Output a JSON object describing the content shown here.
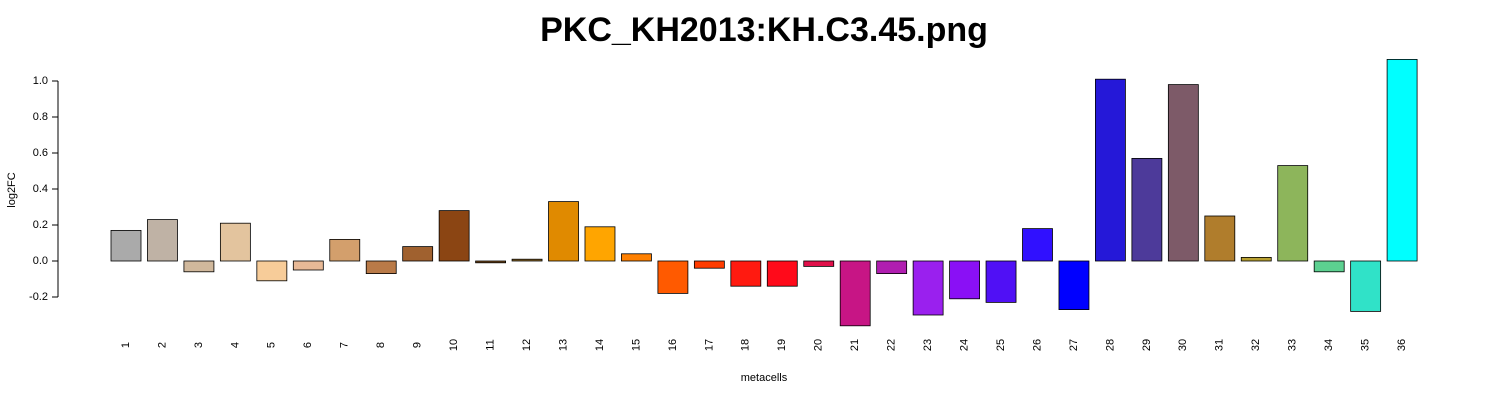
{
  "chart_data": {
    "type": "bar",
    "title": "PKC_KH2013:KH.C3.45.png",
    "x_label": "metacells",
    "y_label": "log2FC",
    "categories": [
      "1",
      "2",
      "3",
      "4",
      "5",
      "6",
      "7",
      "8",
      "9",
      "10",
      "11",
      "12",
      "13",
      "14",
      "15",
      "16",
      "17",
      "18",
      "19",
      "20",
      "21",
      "22",
      "23",
      "24",
      "25",
      "26",
      "27",
      "28",
      "29",
      "30",
      "31",
      "32",
      "33",
      "34",
      "35",
      "36"
    ],
    "values": [
      0.17,
      0.23,
      -0.06,
      0.21,
      -0.11,
      -0.05,
      0.12,
      -0.07,
      0.08,
      0.28,
      -0.01,
      0.01,
      0.33,
      0.19,
      0.04,
      -0.18,
      -0.04,
      -0.14,
      -0.14,
      -0.03,
      -0.36,
      -0.07,
      -0.3,
      -0.21,
      -0.23,
      0.18,
      -0.27,
      1.01,
      0.57,
      0.98,
      0.25,
      0.02,
      0.53,
      -0.06,
      -0.28,
      1.12
    ],
    "colors": [
      "#aaaaaa",
      "#bfb2a5",
      "#d0b89c",
      "#e3c49e",
      "#f7cc99",
      "#e8b996",
      "#d39f6c",
      "#b97a48",
      "#a0612f",
      "#8b4513",
      "#7a4d1c",
      "#8f6b2a",
      "#e08a00",
      "#ffa500",
      "#ff8000",
      "#ff5a00",
      "#ff3c00",
      "#ff1a10",
      "#ff0a1a",
      "#e0104a",
      "#c71585",
      "#b01eb0",
      "#9a20ee",
      "#8a10f5",
      "#5010f5",
      "#3010ff",
      "#0000ff",
      "#2518d8",
      "#4d3a9a",
      "#7d5a68",
      "#b07d2c",
      "#b8a030",
      "#8db55b",
      "#5cd090",
      "#30e2c8",
      "#00ffff"
    ],
    "ylim": [
      -0.38,
      1.14
    ],
    "yticks": [
      -0.2,
      {
        "value": 0,
        "label": "0.0"
      },
      0.2,
      0.4,
      0.6,
      0.8,
      {
        "value": 1,
        "label": "1.0"
      }
    ]
  }
}
